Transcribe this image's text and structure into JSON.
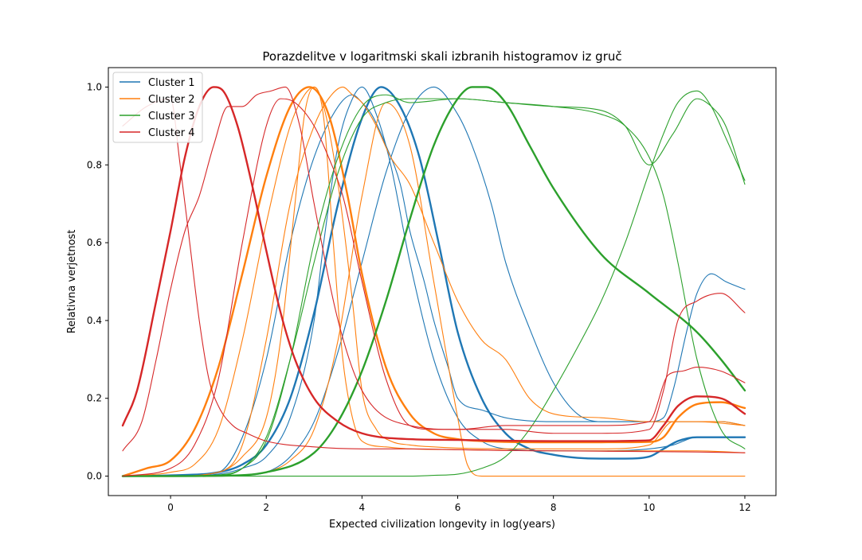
{
  "chart_data": {
    "type": "line",
    "title": "Porazdelitve v logaritmski skali izbranih histogramov iz gruč",
    "xlabel": "Expected civilization longevity in log(years)",
    "ylabel": "Relativna verjetnost",
    "xlim": [
      -1.3,
      12.65
    ],
    "ylim": [
      -0.05,
      1.05
    ],
    "xticks": [
      0,
      2,
      4,
      6,
      8,
      10,
      12
    ],
    "yticks": [
      0.0,
      0.2,
      0.4,
      0.6,
      0.8,
      1.0
    ],
    "grid": false,
    "legend": "top-left",
    "legend_entries": [
      {
        "name": "Cluster 1",
        "color": "#1f77b4"
      },
      {
        "name": "Cluster 2",
        "color": "#ff7f0e"
      },
      {
        "name": "Cluster 3",
        "color": "#2ca02c"
      },
      {
        "name": "Cluster 4",
        "color": "#d62728"
      }
    ],
    "series": [
      {
        "cluster": 1,
        "color": "#1f77b4",
        "width": 2.4,
        "x": [
          -1,
          0,
          1,
          1.5,
          2,
          2.5,
          3,
          3.5,
          4,
          4.4,
          4.8,
          5.2,
          5.6,
          6,
          6.5,
          7,
          7.5,
          8,
          8.5,
          9,
          9.5,
          10,
          10.3,
          10.6,
          11,
          11.5,
          12
        ],
        "y": [
          0,
          0.002,
          0.01,
          0.03,
          0.08,
          0.2,
          0.42,
          0.7,
          0.92,
          1.0,
          0.95,
          0.82,
          0.6,
          0.37,
          0.2,
          0.11,
          0.07,
          0.055,
          0.047,
          0.045,
          0.045,
          0.05,
          0.07,
          0.09,
          0.1,
          0.1,
          0.1
        ]
      },
      {
        "cluster": 1,
        "color": "#1f77b4",
        "width": 1.1,
        "x": [
          -1,
          0,
          1,
          1.5,
          2,
          2.5,
          3,
          3.2,
          3.5,
          3.8,
          4,
          4.3,
          4.6,
          5,
          5.5,
          6,
          6.5,
          7,
          8,
          9,
          10,
          10.5,
          11,
          11.5,
          11.7,
          12
        ],
        "y": [
          0,
          0,
          0.005,
          0.02,
          0.05,
          0.15,
          0.4,
          0.6,
          0.85,
          0.97,
          1.0,
          0.93,
          0.8,
          0.55,
          0.3,
          0.15,
          0.09,
          0.07,
          0.065,
          0.065,
          0.07,
          0.08,
          0.1,
          0.1,
          0.1,
          0.1
        ]
      },
      {
        "cluster": 1,
        "color": "#1f77b4",
        "width": 1.1,
        "x": [
          -1,
          0,
          1,
          1.5,
          2,
          2.5,
          3,
          3.5,
          3.8,
          4,
          4.2,
          4.5,
          4.8,
          5,
          5.3,
          5.5,
          5.8,
          6,
          6.5,
          7,
          8,
          8.5,
          9,
          9.5,
          10,
          10.3,
          10.5,
          10.8,
          11,
          11.3,
          11.6,
          12
        ],
        "y": [
          0,
          0,
          0.01,
          0.1,
          0.3,
          0.6,
          0.82,
          0.95,
          0.98,
          0.96,
          0.93,
          0.85,
          0.75,
          0.63,
          0.5,
          0.4,
          0.28,
          0.2,
          0.17,
          0.15,
          0.14,
          0.14,
          0.14,
          0.14,
          0.14,
          0.15,
          0.22,
          0.38,
          0.47,
          0.52,
          0.5,
          0.48
        ]
      },
      {
        "cluster": 1,
        "color": "#1f77b4",
        "width": 1.1,
        "x": [
          -1,
          0,
          1,
          1.5,
          2,
          2.5,
          3,
          3.5,
          4,
          4.5,
          5,
          5.5,
          6,
          6.3,
          6.7,
          7,
          7.5,
          8,
          8.5,
          9,
          9.5,
          10,
          10.5,
          11,
          11.5,
          12
        ],
        "y": [
          0,
          0,
          0,
          0.002,
          0.01,
          0.05,
          0.14,
          0.32,
          0.55,
          0.78,
          0.94,
          1.0,
          0.93,
          0.85,
          0.7,
          0.55,
          0.38,
          0.24,
          0.16,
          0.14,
          0.14,
          0.14,
          0.14,
          0.14,
          0.14,
          0.13
        ]
      },
      {
        "cluster": 2,
        "color": "#ff7f0e",
        "width": 2.4,
        "x": [
          -1,
          -0.5,
          0,
          0.5,
          1,
          1.5,
          2,
          2.5,
          2.9,
          3.3,
          3.7,
          4,
          4.5,
          5,
          5.5,
          6,
          6.5,
          7,
          8,
          9,
          10,
          10.3,
          10.6,
          11,
          11.5,
          12
        ],
        "y": [
          0,
          0.02,
          0.04,
          0.12,
          0.28,
          0.52,
          0.77,
          0.95,
          1.0,
          0.93,
          0.72,
          0.52,
          0.28,
          0.16,
          0.11,
          0.095,
          0.09,
          0.088,
          0.087,
          0.087,
          0.088,
          0.1,
          0.15,
          0.185,
          0.19,
          0.175
        ]
      },
      {
        "cluster": 2,
        "color": "#ff7f0e",
        "width": 1.1,
        "x": [
          -1,
          0,
          0.5,
          1,
          1.5,
          2,
          2.5,
          2.8,
          3,
          3.2,
          3.5,
          3.8,
          4,
          4.3,
          4.6,
          5,
          5.5,
          6,
          7,
          8,
          9,
          10,
          10.5,
          11,
          11.5,
          12
        ],
        "y": [
          0,
          0.01,
          0.03,
          0.12,
          0.35,
          0.65,
          0.9,
          0.98,
          1.0,
          0.95,
          0.75,
          0.45,
          0.22,
          0.12,
          0.09,
          0.08,
          0.075,
          0.072,
          0.07,
          0.07,
          0.07,
          0.08,
          0.14,
          0.14,
          0.14,
          0.13
        ]
      },
      {
        "cluster": 2,
        "color": "#ff7f0e",
        "width": 1.1,
        "x": [
          -1,
          0,
          1,
          1.5,
          2,
          2.3,
          2.6,
          2.8,
          3,
          3.2,
          3.4,
          3.6,
          3.8,
          4,
          4.5,
          5,
          6,
          7,
          8,
          9,
          10,
          11,
          12
        ],
        "y": [
          0,
          0,
          0.01,
          0.05,
          0.15,
          0.35,
          0.7,
          0.93,
          1.0,
          0.92,
          0.6,
          0.3,
          0.15,
          0.09,
          0.075,
          0.07,
          0.068,
          0.066,
          0.065,
          0.065,
          0.065,
          0.065,
          0.06
        ]
      },
      {
        "cluster": 2,
        "color": "#ff7f0e",
        "width": 1.1,
        "x": [
          -1,
          0,
          1,
          1.5,
          2,
          2.5,
          3,
          3.3,
          3.6,
          3.8,
          4,
          4.3,
          4.6,
          5,
          5.5,
          6,
          6.5,
          7,
          7.5,
          8,
          9,
          10,
          11,
          12
        ],
        "y": [
          0,
          0,
          0.01,
          0.08,
          0.35,
          0.7,
          0.9,
          0.97,
          1.0,
          0.98,
          0.96,
          0.9,
          0.82,
          0.75,
          0.6,
          0.45,
          0.35,
          0.3,
          0.2,
          0.16,
          0.15,
          0.14,
          0.14,
          0.13
        ]
      },
      {
        "cluster": 2,
        "color": "#ff7f0e",
        "width": 1.1,
        "x": [
          -1,
          0,
          1,
          1.5,
          2,
          2.5,
          3,
          3.5,
          4,
          4.5,
          5,
          5.5,
          6,
          6.2,
          6.5,
          7,
          8,
          9,
          10,
          11,
          12
        ],
        "y": [
          0,
          0,
          0,
          0.002,
          0.01,
          0.04,
          0.12,
          0.35,
          0.72,
          0.96,
          0.85,
          0.5,
          0.15,
          0.03,
          0,
          0,
          0,
          0,
          0,
          0,
          0
        ]
      },
      {
        "cluster": 3,
        "color": "#2ca02c",
        "width": 2.4,
        "x": [
          -1,
          0,
          1,
          2,
          3,
          3.5,
          4,
          4.5,
          5,
          5.5,
          6,
          6.3,
          6.6,
          7,
          7.5,
          8,
          9,
          10,
          11,
          11.5,
          12
        ],
        "y": [
          0,
          0,
          0.001,
          0.01,
          0.06,
          0.14,
          0.27,
          0.45,
          0.66,
          0.85,
          0.97,
          1.0,
          1.0,
          0.96,
          0.85,
          0.74,
          0.57,
          0.47,
          0.37,
          0.3,
          0.22
        ]
      },
      {
        "cluster": 3,
        "color": "#2ca02c",
        "width": 1.1,
        "x": [
          -1,
          0,
          1,
          1.5,
          2,
          2.5,
          3,
          3.5,
          4,
          4.5,
          5,
          6,
          7,
          8,
          9,
          9.5,
          10,
          10.5,
          11,
          11.3,
          11.6,
          12
        ],
        "y": [
          0,
          0,
          0.002,
          0.02,
          0.1,
          0.3,
          0.55,
          0.78,
          0.92,
          0.96,
          0.97,
          0.97,
          0.96,
          0.95,
          0.94,
          0.9,
          0.8,
          0.88,
          0.97,
          0.95,
          0.9,
          0.75
        ]
      },
      {
        "cluster": 3,
        "color": "#2ca02c",
        "width": 1.1,
        "x": [
          -1,
          0,
          1,
          2,
          3,
          4,
          5,
          5.5,
          6,
          6.5,
          7,
          7.5,
          8,
          8.5,
          9,
          9.5,
          10,
          10.3,
          10.6,
          11,
          11.3,
          11.6,
          12
        ],
        "y": [
          0,
          0,
          0,
          0,
          0,
          0,
          0,
          0.002,
          0.005,
          0.02,
          0.05,
          0.12,
          0.22,
          0.33,
          0.45,
          0.6,
          0.78,
          0.88,
          0.96,
          0.99,
          0.95,
          0.87,
          0.76
        ]
      },
      {
        "cluster": 3,
        "color": "#2ca02c",
        "width": 1.1,
        "x": [
          -1,
          0,
          1,
          1.5,
          2,
          2.5,
          3,
          3.5,
          4,
          4.5,
          5,
          6,
          7,
          8,
          9,
          9.5,
          10,
          10.3,
          10.6,
          11,
          11.5,
          12
        ],
        "y": [
          0,
          0,
          0.003,
          0.02,
          0.09,
          0.3,
          0.6,
          0.82,
          0.95,
          0.98,
          0.96,
          0.97,
          0.96,
          0.95,
          0.93,
          0.9,
          0.82,
          0.72,
          0.55,
          0.3,
          0.12,
          0.07
        ]
      },
      {
        "cluster": 4,
        "color": "#d62728",
        "width": 2.4,
        "x": [
          -1,
          -0.7,
          -0.3,
          0,
          0.3,
          0.6,
          0.9,
          1.1,
          1.4,
          1.7,
          2,
          2.3,
          2.6,
          3,
          3.5,
          4,
          5,
          6,
          7,
          8,
          9,
          10,
          10.3,
          10.6,
          11,
          11.5,
          12
        ],
        "y": [
          0.13,
          0.22,
          0.45,
          0.63,
          0.82,
          0.95,
          1.0,
          0.99,
          0.9,
          0.75,
          0.58,
          0.42,
          0.3,
          0.2,
          0.14,
          0.11,
          0.095,
          0.093,
          0.091,
          0.09,
          0.09,
          0.092,
          0.13,
          0.18,
          0.205,
          0.2,
          0.16
        ]
      },
      {
        "cluster": 4,
        "color": "#d62728",
        "width": 1.1,
        "x": [
          -1,
          -0.6,
          -0.3,
          0,
          0.3,
          0.6,
          0.9,
          1.2,
          1.5,
          1.8,
          2.1,
          2.4,
          2.7,
          3,
          3.5,
          4,
          5,
          6,
          7,
          8,
          9,
          10,
          10.4,
          10.7,
          11,
          11.5,
          12
        ],
        "y": [
          0.065,
          0.14,
          0.3,
          0.48,
          0.63,
          0.72,
          0.85,
          0.95,
          0.95,
          0.98,
          0.99,
          1.0,
          0.9,
          0.7,
          0.4,
          0.22,
          0.13,
          0.12,
          0.13,
          0.13,
          0.13,
          0.14,
          0.26,
          0.27,
          0.28,
          0.27,
          0.24
        ]
      },
      {
        "cluster": 4,
        "color": "#d62728",
        "width": 1.1,
        "x": [
          -1,
          -0.5,
          0,
          0.2,
          0.4,
          0.6,
          0.8,
          1,
          1.3,
          1.6,
          2,
          3,
          4,
          5,
          6,
          7,
          8,
          9,
          10,
          11,
          12
        ],
        "y": [
          0.9,
          0.95,
          0.97,
          0.8,
          0.6,
          0.4,
          0.25,
          0.18,
          0.13,
          0.11,
          0.09,
          0.075,
          0.07,
          0.07,
          0.068,
          0.066,
          0.065,
          0.064,
          0.063,
          0.062,
          0.06
        ]
      },
      {
        "cluster": 4,
        "color": "#d62728",
        "width": 1.1,
        "x": [
          -1,
          0,
          0.5,
          1,
          1.5,
          2,
          2.3,
          2.6,
          3,
          3.3,
          3.6,
          4,
          4.5,
          5,
          5.5,
          6,
          7,
          8,
          9,
          10,
          10.3,
          10.6,
          11,
          11.5,
          12
        ],
        "y": [
          0,
          0.02,
          0.08,
          0.25,
          0.6,
          0.9,
          0.97,
          0.96,
          0.9,
          0.82,
          0.72,
          0.5,
          0.25,
          0.13,
          0.12,
          0.12,
          0.12,
          0.11,
          0.11,
          0.12,
          0.22,
          0.4,
          0.45,
          0.47,
          0.42
        ]
      }
    ]
  }
}
